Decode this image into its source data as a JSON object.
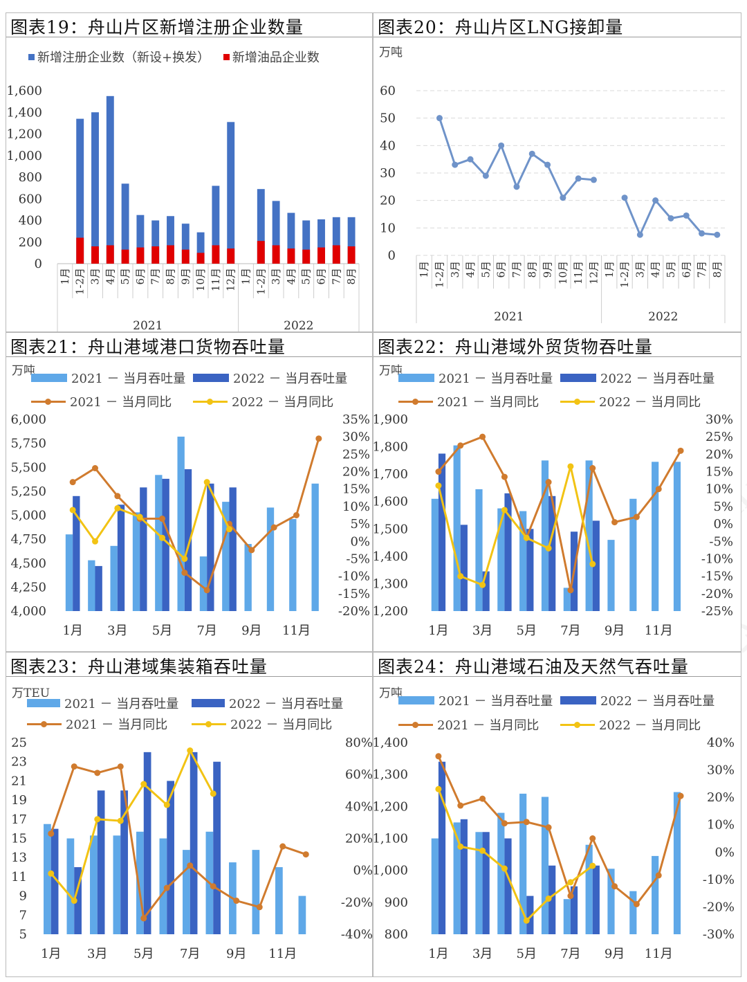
{
  "watermark": {
    "text_cn": "浙江国际油气交易中心",
    "text_en": "ZHEJIANG MERCANTILE EXCHANGE"
  },
  "panels": {
    "p19": {
      "title": "图表19：舟山片区新增注册企业数量"
    },
    "p20": {
      "title": "图表20：舟山片区LNG接卸量"
    },
    "p21": {
      "title": "图表21：舟山港域港口货物吞吐量"
    },
    "p22": {
      "title": "图表22：舟山港域外贸货物吞吐量"
    },
    "p23": {
      "title": "图表23：舟山港域集装箱吞吐量"
    },
    "p24": {
      "title": "图表24：舟山港域石油及天然气吞吐量"
    }
  },
  "chart_data": [
    {
      "id": "c19",
      "type": "bar",
      "categories": [
        "1月",
        "1-2月",
        "3月",
        "4月",
        "5月",
        "6月",
        "7月",
        "8月",
        "9月",
        "10月",
        "11月",
        "12月",
        "1月",
        "1-2月",
        "3月",
        "4月",
        "5月",
        "6月",
        "7月",
        "8月"
      ],
      "groups": [
        {
          "label": "2021",
          "count": 12
        },
        {
          "label": "2022",
          "count": 8
        }
      ],
      "series": [
        {
          "name": "新增注册企业数（新设+换发）",
          "color": "#4472c4",
          "values": [
            null,
            1340,
            1400,
            1550,
            740,
            450,
            400,
            440,
            370,
            290,
            720,
            1310,
            null,
            690,
            580,
            470,
            400,
            410,
            430,
            430
          ]
        },
        {
          "name": "新增油品企业数",
          "color": "#e00000",
          "values": [
            null,
            240,
            160,
            170,
            130,
            150,
            160,
            170,
            130,
            100,
            170,
            140,
            null,
            210,
            170,
            140,
            130,
            150,
            170,
            160
          ]
        }
      ],
      "y_ticks": [
        "1,600",
        "1,400",
        "1,200",
        "1,000",
        "800",
        "600",
        "400",
        "200",
        "0"
      ],
      "ylim": [
        0,
        1600
      ]
    },
    {
      "id": "c20",
      "type": "line",
      "unit": "万吨",
      "categories": [
        "1月",
        "1-2月",
        "3月",
        "4月",
        "5月",
        "6月",
        "7月",
        "8月",
        "9月",
        "10月",
        "11月",
        "12月",
        "1月",
        "1-2月",
        "3月",
        "4月",
        "5月",
        "6月",
        "7月",
        "8月"
      ],
      "groups": [
        {
          "label": "2021",
          "count": 12
        },
        {
          "label": "2022",
          "count": 8
        }
      ],
      "series": [
        {
          "name": "LNG接卸量",
          "color": "#6f93c9",
          "values": [
            null,
            50,
            33,
            35,
            29,
            40,
            25,
            37,
            33,
            21,
            28,
            27.5,
            null,
            21,
            7.5,
            20,
            13.5,
            14.5,
            8,
            7.5
          ]
        }
      ],
      "y_ticks": [
        "60",
        "50",
        "40",
        "30",
        "20",
        "10",
        "0"
      ],
      "ylim": [
        0,
        60
      ]
    },
    {
      "id": "c21",
      "type": "bar+line",
      "unit": "万吨",
      "x_labels": [
        "1月",
        "",
        "3月",
        "",
        "5月",
        "",
        "7月",
        "",
        "9月",
        "",
        "11月",
        ""
      ],
      "legend": [
        "2021 － 当月吞吐量",
        "2022 － 当月吞吐量",
        "2021 － 当月同比",
        "2022 － 当月同比"
      ],
      "bars2021": [
        4800,
        4530,
        4680,
        5030,
        5420,
        5820,
        4570,
        5140,
        4700,
        5080,
        4960,
        5330
      ],
      "bars2022": [
        5200,
        4470,
        5110,
        5290,
        5380,
        5480,
        5330,
        5290,
        null,
        null,
        null,
        null
      ],
      "yoy2021": [
        17,
        21,
        13,
        6.5,
        6.5,
        -9,
        -14,
        5,
        -2.5,
        4,
        7.5,
        29.5
      ],
      "yoy2022": [
        9,
        0,
        9.5,
        7,
        1,
        -5,
        17,
        3.5,
        null,
        null,
        null,
        null
      ],
      "left_ticks": [
        "6,000",
        "5,750",
        "5,500",
        "5,250",
        "5,000",
        "4,750",
        "4,500",
        "4,250",
        "4,000"
      ],
      "right_ticks": [
        "35%",
        "30%",
        "25%",
        "20%",
        "15%",
        "10%",
        "5%",
        "0%",
        "-5%",
        "-10%",
        "-15%",
        "-20%"
      ],
      "ylim": [
        4000,
        6000
      ],
      "y2lim": [
        -20,
        35
      ]
    },
    {
      "id": "c22",
      "type": "bar+line",
      "unit": "万吨",
      "x_labels": [
        "1月",
        "",
        "3月",
        "",
        "5月",
        "",
        "7月",
        "",
        "9月",
        "",
        "11月",
        ""
      ],
      "legend": [
        "2021 － 当月吞吐量",
        "2022 － 当月吞吐量",
        "2021 － 当月同比",
        "2022 － 当月同比"
      ],
      "bars2021": [
        1610,
        1805,
        1645,
        1575,
        1565,
        1750,
        1285,
        1750,
        1460,
        1610,
        1745,
        1745
      ],
      "bars2022": [
        1775,
        1515,
        1345,
        1630,
        1500,
        1620,
        1490,
        1530,
        null,
        null,
        null,
        null
      ],
      "yoy2021": [
        15,
        22.5,
        25,
        13.5,
        -4,
        12,
        -19,
        16,
        0.5,
        2,
        10,
        21
      ],
      "yoy2022": [
        11,
        -15,
        -17.5,
        4,
        -4,
        -7,
        16.5,
        -11.5,
        null,
        null,
        null,
        null
      ],
      "left_ticks": [
        "1,900",
        "1,800",
        "1,700",
        "1,600",
        "1,500",
        "1,400",
        "1,300",
        "1,200"
      ],
      "right_ticks": [
        "30%",
        "25%",
        "20%",
        "15%",
        "10%",
        "5%",
        "0%",
        "-5%",
        "-10%",
        "-15%",
        "-20%",
        "-25%"
      ],
      "ylim": [
        1200,
        1900
      ],
      "y2lim": [
        -25,
        30
      ]
    },
    {
      "id": "c23",
      "type": "bar+line",
      "unit": "万TEU",
      "x_labels": [
        "1月",
        "",
        "3月",
        "",
        "5月",
        "",
        "7月",
        "",
        "9月",
        "",
        "11月",
        ""
      ],
      "legend": [
        "2021 － 当月吞吐量",
        "2022 － 当月吞吐量",
        "2021 － 当月同比",
        "2022 － 当月同比"
      ],
      "bars2021": [
        16.5,
        15,
        15.3,
        15.3,
        15.7,
        15,
        13.8,
        15.7,
        12.5,
        13.8,
        12,
        9
      ],
      "bars2022": [
        16,
        12,
        20,
        20,
        24,
        21,
        24,
        23,
        null,
        null,
        null,
        null
      ],
      "yoy2021": [
        23,
        65,
        61,
        65,
        -30,
        -11,
        3,
        -10,
        -19,
        -23,
        15,
        10
      ],
      "yoy2022": [
        -2,
        -19,
        32,
        31,
        54,
        41,
        75,
        48,
        null,
        null,
        null,
        null
      ],
      "left_ticks": [
        "25",
        "23",
        "21",
        "19",
        "17",
        "15",
        "13",
        "11",
        "9",
        "7",
        "5"
      ],
      "right_ticks": [
        "80%",
        "60%",
        "40%",
        "20%",
        "0%",
        "-20%",
        "-40%"
      ],
      "ylim": [
        5,
        25
      ],
      "y2lim": [
        -40,
        80
      ]
    },
    {
      "id": "c24",
      "type": "bar+line",
      "unit": "万吨",
      "x_labels": [
        "1月",
        "",
        "3月",
        "",
        "5月",
        "",
        "7月",
        "",
        "9月",
        "",
        "11月",
        ""
      ],
      "legend": [
        "2021 － 当月吞吐量",
        "2022 － 当月吞吐量",
        "2021 － 当月同比",
        "2022 － 当月同比"
      ],
      "bars2021": [
        1100,
        1150,
        1120,
        1180,
        1240,
        1230,
        910,
        1080,
        1005,
        935,
        1045,
        1245
      ],
      "bars2022": [
        1340,
        1160,
        1120,
        1100,
        920,
        1015,
        950,
        1015,
        null,
        null,
        null,
        null
      ],
      "yoy2021": [
        35,
        17,
        19.5,
        10.5,
        11,
        9,
        -16,
        5,
        -12.5,
        -19,
        -8.5,
        20.5
      ],
      "yoy2022": [
        23,
        2,
        0.5,
        -6,
        -25,
        -17,
        -11,
        -5,
        null,
        null,
        null,
        null
      ],
      "left_ticks": [
        "1,400",
        "1,300",
        "1,200",
        "1,100",
        "1,000",
        "900",
        "800"
      ],
      "right_ticks": [
        "40%",
        "30%",
        "20%",
        "10%",
        "0%",
        "-10%",
        "-20%",
        "-30%"
      ],
      "ylim": [
        800,
        1400
      ],
      "y2lim": [
        -30,
        40
      ]
    }
  ]
}
